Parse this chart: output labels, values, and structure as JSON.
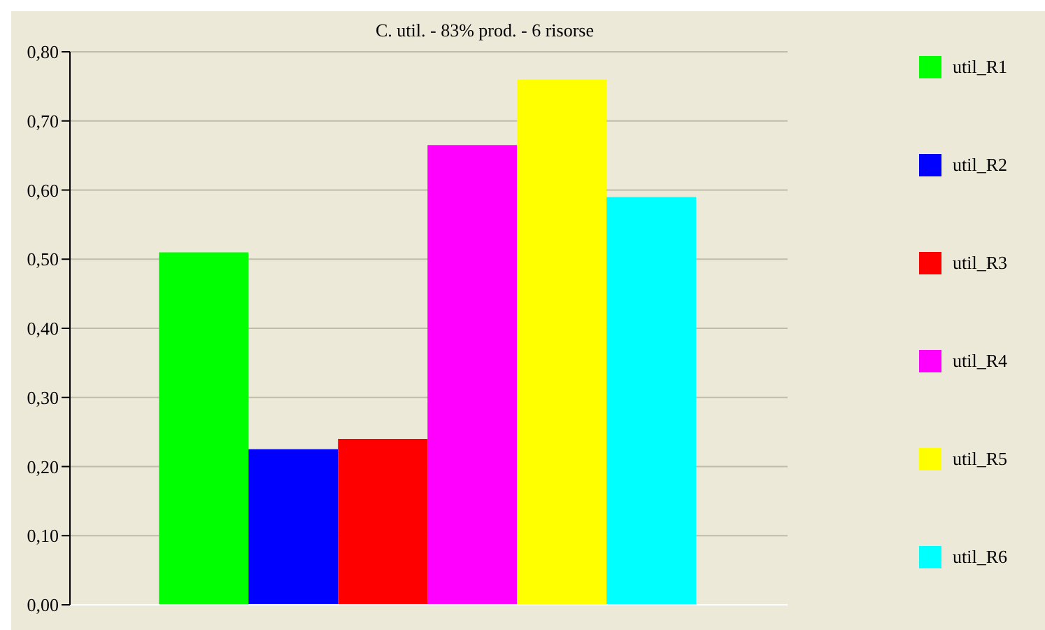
{
  "chart_data": {
    "type": "bar",
    "title": "C. util. - 83% prod. - 6 risorse",
    "categories": [
      null
    ],
    "series": [
      {
        "name": "util_R1",
        "color": "#00ff00",
        "values": [
          0.51
        ]
      },
      {
        "name": "util_R2",
        "color": "#0000ff",
        "values": [
          0.225
        ]
      },
      {
        "name": "util_R3",
        "color": "#ff0000",
        "values": [
          0.24
        ]
      },
      {
        "name": "util_R4",
        "color": "#ff00ff",
        "values": [
          0.665
        ]
      },
      {
        "name": "util_R5",
        "color": "#ffff00",
        "values": [
          0.76
        ]
      },
      {
        "name": "util_R6",
        "color": "#00ffff",
        "values": [
          0.59
        ]
      }
    ],
    "ylim": [
      0,
      0.8
    ],
    "yticks": [
      {
        "value": 0,
        "label": "0,00"
      },
      {
        "value": 0.1,
        "label": "0,10"
      },
      {
        "value": 0.2,
        "label": "0,20"
      },
      {
        "value": 0.3,
        "label": "0,30"
      },
      {
        "value": 0.4,
        "label": "0,40"
      },
      {
        "value": 0.5,
        "label": "0,50"
      },
      {
        "value": 0.6,
        "label": "0,60"
      },
      {
        "value": 0.7,
        "label": "0,70"
      },
      {
        "value": 0.8,
        "label": "0,80"
      }
    ],
    "grid": "y",
    "legend": "right"
  }
}
